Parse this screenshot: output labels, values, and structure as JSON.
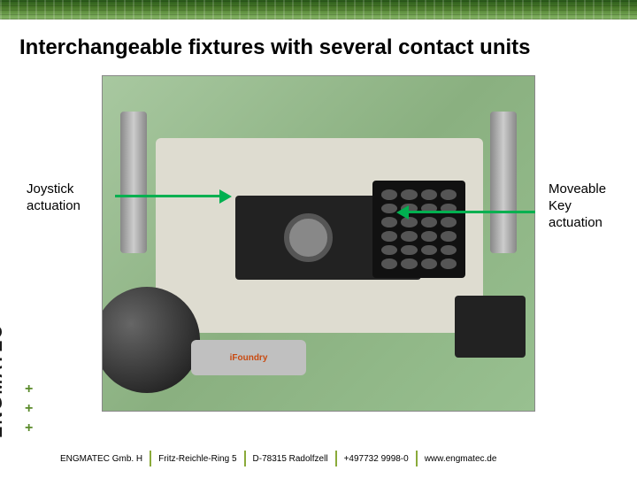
{
  "title": "Interchangeable fixtures with several contact units",
  "title_color": "#222222",
  "labels": {
    "left": {
      "line1": "Joystick",
      "line2": "actuation"
    },
    "right": {
      "line1": "Moveable",
      "line2": "Key",
      "line3": "actuation"
    }
  },
  "arrow_color": "#00b050",
  "accent_color": "#8aaa3a",
  "top_strip_gradient": [
    "#2a5a1a",
    "#4a7a2a",
    "#6a9a4a",
    "#8aba6a"
  ],
  "photo_placeholder": {
    "bg_from": "#a8c8a0",
    "bg_to": "#98c090",
    "foundry_text": "iFoundry"
  },
  "logo_vertical": "ENGMATEC",
  "footer": {
    "cells": [
      "ENGMATEC Gmb. H",
      "Fritz-Reichle-Ring 5",
      "D-78315 Radolfzell",
      "+497732 9998-0",
      "www.engmatec.de"
    ]
  }
}
